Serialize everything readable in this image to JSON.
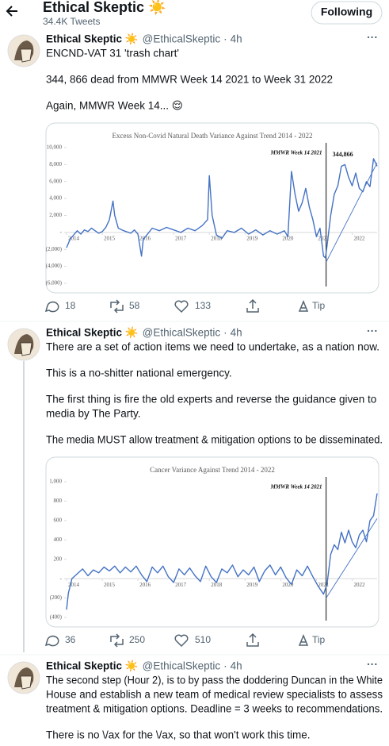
{
  "header": {
    "title": "Ethical Skeptic ☀️",
    "tweets": "34.4K Tweets",
    "follow": "Following"
  },
  "tweets": [
    {
      "name": "Ethical Skeptic ☀️",
      "handle": "@EthicalSkeptic",
      "sep": "·",
      "time": "4h",
      "text": [
        [
          "ENCND-VAT 31 'trash chart'"
        ],
        [
          "344, 866 dead from MMWR Week 14 2021 to Week 31 2022"
        ],
        [
          "Again, MMWR Week 14... 😌"
        ]
      ],
      "replies": 18,
      "retweets": 58,
      "likes": 133,
      "tip": "Tip"
    },
    {
      "name": "Ethical Skeptic ☀️",
      "handle": "@EthicalSkeptic",
      "sep": "·",
      "time": "4h",
      "text": [
        [
          "There are a set of action items we need to undertake, as a nation now."
        ],
        [
          "This is a no-shitter national emergency."
        ],
        [
          "The first thing is fire the old experts and reverse the guidance given to",
          "media by The Party."
        ],
        [
          "The media MUST allow treatment & mitigation options to be disseminated."
        ]
      ],
      "replies": 36,
      "retweets": 250,
      "likes": 510,
      "tip": "Tip"
    },
    {
      "name": "Ethical Skeptic ☀️",
      "handle": "@EthicalSkeptic",
      "sep": "·",
      "time": "4h",
      "text": [
        [
          "The second step (Hour 2), is to by pass the doddering Duncan in the White",
          "House and establish a new team of medical review specialists to assess",
          "treatment & mitigation options. Deadline = 3 weeks to recommendations."
        ],
        [
          "There is no \\/ax for the \\/ax, so that won't work this time."
        ]
      ]
    }
  ],
  "chart_data": [
    {
      "type": "line",
      "title": "Excess Non-Covid Natural Death Variance Against Trend  2014 - 2022",
      "annotations": [
        "MMWR Week 14 2021",
        "344,866"
      ],
      "color": "#4472c4",
      "x": [
        2014.0,
        2014.1,
        2014.2,
        2014.3,
        2014.4,
        2014.5,
        2014.6,
        2014.7,
        2014.8,
        2014.9,
        2015.0,
        2015.1,
        2015.2,
        2015.3,
        2015.35,
        2015.45,
        2015.6,
        2015.8,
        2015.9,
        2016.0,
        2016.1,
        2016.15,
        2016.25,
        2016.4,
        2016.6,
        2016.8,
        2017.0,
        2017.2,
        2017.4,
        2017.6,
        2017.8,
        2017.95,
        2018.0,
        2018.08,
        2018.2,
        2018.35,
        2018.5,
        2018.7,
        2018.9,
        2019.1,
        2019.3,
        2019.5,
        2019.7,
        2019.9,
        2020.1,
        2020.2,
        2020.3,
        2020.4,
        2020.5,
        2020.6,
        2020.7,
        2020.8,
        2020.9,
        2021.0,
        2021.1,
        2021.2,
        2021.25,
        2021.3,
        2021.4,
        2021.5,
        2021.6,
        2021.7,
        2021.8,
        2021.9,
        2022.0,
        2022.1,
        2022.2,
        2022.3,
        2022.4,
        2022.5,
        2022.6,
        2022.7
      ],
      "values": [
        -1800,
        -800,
        -300,
        200,
        -200,
        300,
        100,
        500,
        200,
        -100,
        100,
        600,
        1500,
        3700,
        2000,
        500,
        200,
        -100,
        300,
        -200,
        -2800,
        -800,
        -300,
        500,
        200,
        600,
        300,
        0,
        500,
        200,
        800,
        1500,
        6700,
        2000,
        -300,
        -700,
        200,
        0,
        500,
        -200,
        300,
        -300,
        200,
        -200,
        200,
        -500,
        7200,
        4500,
        2500,
        3500,
        5200,
        3000,
        1500,
        -500,
        500,
        -2800,
        -3000,
        -1500,
        2000,
        4500,
        5500,
        7800,
        8000,
        6500,
        5500,
        7000,
        5200,
        4800,
        6000,
        5400,
        8700,
        7800
      ],
      "trend": {
        "x": [
          2021.27,
          2022.7
        ],
        "values": [
          -3500,
          8200
        ]
      },
      "vline": 2021.27,
      "xlim": [
        2014,
        2022.7
      ],
      "xticks": [
        2014,
        2015,
        2016,
        2017,
        2018,
        2019,
        2020,
        2021,
        2022
      ],
      "ylim": [
        -6000,
        10000
      ],
      "yticks": [
        {
          "value": 10000,
          "label": "10,000"
        },
        {
          "value": 8000,
          "label": "8,000"
        },
        {
          "value": 6000,
          "label": "6,000"
        },
        {
          "value": 4000,
          "label": "4,000"
        },
        {
          "value": 2000,
          "label": "2,000"
        },
        {
          "value": 0,
          "label": "-"
        },
        {
          "value": -2000,
          "label": "(2,000)"
        },
        {
          "value": -4000,
          "label": "(4,000)"
        },
        {
          "value": -6000,
          "label": "(6,000)"
        }
      ]
    },
    {
      "type": "line",
      "title": "Cancer Variance Against Trend  2014 - 2022",
      "annotations": [
        "MMWR Week 14 2021"
      ],
      "color": "#4472c4",
      "x": [
        2014.0,
        2014.05,
        2014.15,
        2014.3,
        2014.45,
        2014.6,
        2014.75,
        2014.9,
        2015.05,
        2015.2,
        2015.35,
        2015.5,
        2015.65,
        2015.8,
        2015.95,
        2016.1,
        2016.25,
        2016.4,
        2016.55,
        2016.7,
        2016.85,
        2017.0,
        2017.15,
        2017.3,
        2017.45,
        2017.6,
        2017.75,
        2017.9,
        2018.05,
        2018.2,
        2018.35,
        2018.5,
        2018.65,
        2018.8,
        2018.95,
        2019.1,
        2019.25,
        2019.4,
        2019.55,
        2019.7,
        2019.85,
        2020.0,
        2020.15,
        2020.3,
        2020.45,
        2020.6,
        2020.75,
        2020.9,
        2021.05,
        2021.2,
        2021.3,
        2021.4,
        2021.5,
        2021.6,
        2021.7,
        2021.8,
        2021.9,
        2022.0,
        2022.1,
        2022.2,
        2022.3,
        2022.4,
        2022.5,
        2022.6,
        2022.7
      ],
      "values": [
        -320,
        -150,
        0,
        50,
        100,
        30,
        90,
        60,
        120,
        80,
        130,
        60,
        120,
        70,
        130,
        40,
        -30,
        120,
        60,
        130,
        20,
        -40,
        100,
        40,
        110,
        30,
        -30,
        130,
        20,
        -40,
        100,
        60,
        140,
        20,
        90,
        40,
        120,
        -30,
        80,
        140,
        40,
        120,
        10,
        -60,
        90,
        30,
        130,
        20,
        -80,
        -160,
        -50,
        250,
        350,
        300,
        480,
        370,
        500,
        380,
        320,
        450,
        500,
        380,
        600,
        650,
        880
      ],
      "trend": {
        "x": [
          2021.27,
          2022.7
        ],
        "values": [
          -200,
          620
        ]
      },
      "vline": 2021.27,
      "xlim": [
        2014,
        2022.7
      ],
      "xticks": [
        2014,
        2015,
        2016,
        2017,
        2018,
        2019,
        2020,
        2021,
        2022
      ],
      "ylim": [
        -400,
        1000
      ],
      "yticks": [
        {
          "value": 1000,
          "label": "1,000"
        },
        800,
        600,
        400,
        200,
        {
          "value": 0,
          "label": "-"
        },
        {
          "value": -200,
          "label": "(200)"
        },
        {
          "value": -400,
          "label": "(400)"
        }
      ]
    }
  ]
}
